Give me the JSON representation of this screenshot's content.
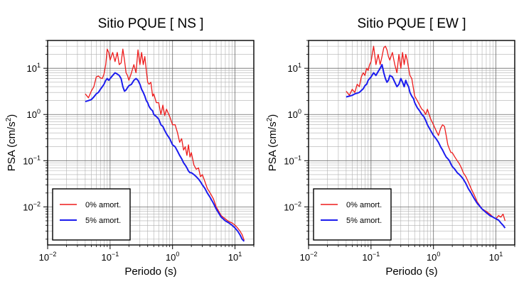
{
  "chart_data": [
    {
      "type": "line",
      "title": "Sitio PQUE [ NS ]",
      "xlabel": "Periodo (s)",
      "ylabel_base": "PSA (cm/s",
      "ylabel_sup": "2",
      "ylabel_close": ")",
      "xscale": "log",
      "yscale": "log",
      "xlim": [
        0.01,
        20
      ],
      "ylim": [
        0.0015,
        40
      ],
      "grid": true,
      "legend_position": "bottom-left",
      "x_ticks": [
        {
          "value": 0.01,
          "base": "10",
          "exp": "−2"
        },
        {
          "value": 0.1,
          "base": "10",
          "exp": "−1"
        },
        {
          "value": 1,
          "base": "10",
          "exp": "0"
        },
        {
          "value": 10,
          "base": "10",
          "exp": "1"
        }
      ],
      "y_ticks": [
        {
          "value": 0.01,
          "base": "10",
          "exp": "−2"
        },
        {
          "value": 0.1,
          "base": "10",
          "exp": "−1"
        },
        {
          "value": 1,
          "base": "10",
          "exp": "0"
        },
        {
          "value": 10,
          "base": "10",
          "exp": "1"
        }
      ],
      "series": [
        {
          "name": "0% amort.",
          "color": "#ee1c1c",
          "x": [
            0.04,
            0.045,
            0.05,
            0.055,
            0.06,
            0.065,
            0.07,
            0.075,
            0.08,
            0.085,
            0.09,
            0.095,
            0.1,
            0.11,
            0.12,
            0.13,
            0.14,
            0.15,
            0.16,
            0.17,
            0.18,
            0.19,
            0.2,
            0.22,
            0.24,
            0.26,
            0.28,
            0.3,
            0.32,
            0.34,
            0.36,
            0.38,
            0.4,
            0.42,
            0.45,
            0.48,
            0.5,
            0.55,
            0.6,
            0.65,
            0.7,
            0.75,
            0.8,
            0.9,
            1.0,
            1.1,
            1.2,
            1.3,
            1.4,
            1.5,
            1.6,
            1.7,
            1.8,
            1.9,
            2.0,
            2.2,
            2.4,
            2.6,
            2.8,
            3.0,
            3.3,
            3.6,
            4.0,
            4.5,
            5.0,
            6.0,
            7.0,
            8.0,
            9.0,
            10.0,
            11.0,
            12.0,
            13.0,
            14.0
          ],
          "y": [
            2.8,
            2.3,
            3.2,
            4.0,
            6.5,
            6.8,
            6.2,
            6.0,
            7.5,
            12.0,
            26.0,
            22.0,
            15.0,
            22.0,
            14.0,
            22.0,
            12.0,
            13.0,
            26.0,
            15.0,
            8.0,
            7.0,
            5.5,
            8.0,
            12.0,
            8.0,
            25.0,
            12.0,
            22.0,
            12.0,
            18.0,
            9.0,
            5.0,
            4.5,
            5.0,
            2.5,
            2.8,
            1.8,
            1.8,
            1.0,
            1.6,
            0.95,
            1.3,
            0.9,
            0.6,
            0.6,
            0.4,
            0.25,
            0.3,
            0.17,
            0.2,
            0.13,
            0.22,
            0.12,
            0.15,
            0.08,
            0.065,
            0.07,
            0.045,
            0.05,
            0.035,
            0.025,
            0.02,
            0.015,
            0.01,
            0.0065,
            0.0055,
            0.0048,
            0.0045,
            0.004,
            0.0035,
            0.003,
            0.0025,
            0.0019
          ]
        },
        {
          "name": "5% amort.",
          "color": "#1c1cee",
          "x": [
            0.04,
            0.045,
            0.05,
            0.055,
            0.06,
            0.065,
            0.07,
            0.075,
            0.08,
            0.085,
            0.09,
            0.095,
            0.1,
            0.11,
            0.12,
            0.13,
            0.14,
            0.15,
            0.16,
            0.17,
            0.18,
            0.19,
            0.2,
            0.22,
            0.24,
            0.26,
            0.28,
            0.3,
            0.32,
            0.34,
            0.36,
            0.38,
            0.4,
            0.42,
            0.45,
            0.48,
            0.5,
            0.55,
            0.6,
            0.65,
            0.7,
            0.75,
            0.8,
            0.9,
            1.0,
            1.1,
            1.2,
            1.3,
            1.4,
            1.5,
            1.6,
            1.7,
            1.8,
            1.9,
            2.0,
            2.2,
            2.4,
            2.6,
            2.8,
            3.0,
            3.3,
            3.6,
            4.0,
            4.5,
            5.0,
            6.0,
            7.0,
            8.0,
            9.0,
            10.0,
            11.0,
            12.0,
            13.0,
            14.0
          ],
          "y": [
            1.9,
            2.0,
            2.1,
            2.4,
            2.8,
            3.0,
            3.5,
            4.0,
            4.5,
            5.5,
            6.0,
            5.5,
            6.0,
            7.0,
            8.0,
            7.5,
            7.0,
            6.0,
            4.0,
            3.2,
            3.4,
            3.8,
            4.2,
            4.5,
            5.5,
            6.0,
            5.5,
            4.5,
            3.5,
            3.0,
            2.5,
            2.0,
            1.8,
            1.5,
            1.3,
            1.2,
            1.0,
            0.9,
            0.8,
            0.6,
            0.55,
            0.45,
            0.38,
            0.3,
            0.22,
            0.2,
            0.16,
            0.13,
            0.11,
            0.09,
            0.08,
            0.07,
            0.06,
            0.055,
            0.055,
            0.05,
            0.045,
            0.04,
            0.035,
            0.03,
            0.025,
            0.02,
            0.016,
            0.012,
            0.009,
            0.006,
            0.005,
            0.0045,
            0.004,
            0.0035,
            0.003,
            0.0025,
            0.002,
            0.0018
          ]
        }
      ]
    },
    {
      "type": "line",
      "title": "Sitio PQUE [ EW ]",
      "xlabel": "Periodo (s)",
      "ylabel_base": "PSA (cm/s",
      "ylabel_sup": "2",
      "ylabel_close": ")",
      "xscale": "log",
      "yscale": "log",
      "xlim": [
        0.01,
        20
      ],
      "ylim": [
        0.0015,
        40
      ],
      "grid": true,
      "legend_position": "bottom-left",
      "x_ticks": [
        {
          "value": 0.01,
          "base": "10",
          "exp": "−2"
        },
        {
          "value": 0.1,
          "base": "10",
          "exp": "−1"
        },
        {
          "value": 1,
          "base": "10",
          "exp": "0"
        },
        {
          "value": 10,
          "base": "10",
          "exp": "1"
        }
      ],
      "y_ticks": [
        {
          "value": 0.01,
          "base": "10",
          "exp": "−2"
        },
        {
          "value": 0.1,
          "base": "10",
          "exp": "−1"
        },
        {
          "value": 1,
          "base": "10",
          "exp": "0"
        },
        {
          "value": 10,
          "base": "10",
          "exp": "1"
        }
      ],
      "series": [
        {
          "name": "0% amort.",
          "color": "#ee1c1c",
          "x": [
            0.04,
            0.045,
            0.05,
            0.055,
            0.06,
            0.065,
            0.07,
            0.075,
            0.08,
            0.085,
            0.09,
            0.095,
            0.1,
            0.11,
            0.12,
            0.13,
            0.14,
            0.15,
            0.16,
            0.17,
            0.18,
            0.19,
            0.2,
            0.22,
            0.24,
            0.26,
            0.28,
            0.3,
            0.32,
            0.34,
            0.36,
            0.38,
            0.4,
            0.42,
            0.45,
            0.48,
            0.5,
            0.55,
            0.6,
            0.65,
            0.7,
            0.75,
            0.8,
            0.9,
            1.0,
            1.1,
            1.2,
            1.3,
            1.4,
            1.5,
            1.6,
            1.7,
            1.8,
            1.9,
            2.0,
            2.2,
            2.4,
            2.6,
            2.8,
            3.0,
            3.3,
            3.6,
            4.0,
            4.5,
            5.0,
            6.0,
            7.0,
            8.0,
            9.0,
            10.0,
            11.0,
            12.0,
            13.0,
            14.0
          ],
          "y": [
            3.2,
            2.6,
            3.5,
            3.0,
            4.5,
            4.0,
            6.5,
            8.0,
            7.0,
            10.0,
            9.0,
            12.0,
            14.0,
            30.0,
            12.0,
            20.0,
            12.0,
            18.0,
            28.0,
            30.0,
            25.0,
            18.0,
            15.0,
            22.0,
            12.0,
            8.0,
            20.0,
            10.0,
            22.0,
            12.0,
            20.0,
            15.0,
            10.0,
            7.0,
            6.0,
            3.5,
            2.5,
            2.0,
            1.6,
            1.3,
            1.2,
            1.0,
            1.3,
            0.8,
            0.6,
            0.45,
            0.35,
            0.5,
            0.6,
            0.55,
            0.35,
            0.22,
            0.18,
            0.15,
            0.15,
            0.12,
            0.1,
            0.085,
            0.07,
            0.055,
            0.045,
            0.035,
            0.025,
            0.018,
            0.013,
            0.009,
            0.008,
            0.007,
            0.006,
            0.0055,
            0.0065,
            0.006,
            0.007,
            0.005
          ]
        },
        {
          "name": "5% amort.",
          "color": "#1c1cee",
          "x": [
            0.04,
            0.045,
            0.05,
            0.055,
            0.06,
            0.065,
            0.07,
            0.075,
            0.08,
            0.085,
            0.09,
            0.095,
            0.1,
            0.11,
            0.12,
            0.13,
            0.14,
            0.15,
            0.16,
            0.17,
            0.18,
            0.19,
            0.2,
            0.22,
            0.24,
            0.26,
            0.28,
            0.3,
            0.32,
            0.34,
            0.36,
            0.38,
            0.4,
            0.42,
            0.45,
            0.48,
            0.5,
            0.55,
            0.6,
            0.65,
            0.7,
            0.75,
            0.8,
            0.9,
            1.0,
            1.1,
            1.2,
            1.3,
            1.4,
            1.5,
            1.6,
            1.7,
            1.8,
            1.9,
            2.0,
            2.2,
            2.4,
            2.6,
            2.8,
            3.0,
            3.3,
            3.6,
            4.0,
            4.5,
            5.0,
            6.0,
            7.0,
            8.0,
            9.0,
            10.0,
            11.0,
            12.0,
            13.0,
            14.0
          ],
          "y": [
            2.4,
            2.5,
            2.6,
            2.8,
            2.9,
            3.0,
            3.3,
            3.6,
            4.2,
            4.5,
            5.5,
            6.0,
            6.5,
            8.0,
            7.0,
            8.5,
            10.0,
            12.0,
            8.0,
            6.0,
            5.0,
            5.5,
            7.0,
            6.5,
            5.0,
            4.0,
            4.5,
            6.0,
            5.0,
            4.0,
            5.5,
            4.5,
            4.0,
            3.0,
            2.5,
            2.2,
            1.8,
            1.4,
            1.2,
            1.0,
            0.9,
            0.75,
            0.6,
            0.45,
            0.35,
            0.3,
            0.25,
            0.2,
            0.17,
            0.14,
            0.12,
            0.11,
            0.1,
            0.085,
            0.075,
            0.065,
            0.055,
            0.05,
            0.045,
            0.04,
            0.032,
            0.025,
            0.02,
            0.015,
            0.012,
            0.009,
            0.0075,
            0.0065,
            0.006,
            0.0055,
            0.0052,
            0.0045,
            0.004,
            0.0035
          ]
        }
      ]
    }
  ]
}
